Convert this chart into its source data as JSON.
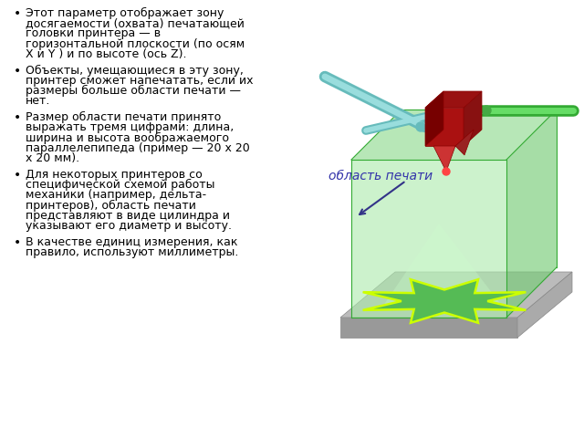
{
  "background_color": "#ffffff",
  "bullet_points": [
    "Этот параметр отображает зону\nдосягаемости (охвата) печатающей\nголовки принтера — в\nгоризонтальной плоскости (по осям\nX и Y ) и по высоте (ось Z).",
    "Объекты, умещающиеся в эту зону,\nпринтер сможет напечатать, если их\nразмеры больше области печати —\nнет.",
    "Размер области печати принято\nвыражать тремя цифрами: длина,\nширина и высота воображаемого\nпараллелепипеда (пример — 20 х 20\nх 20 мм).",
    "Для некоторых принтеров со\nспецифической схемой работы\nмеханики (например, дельта-\nпринтеров), область печати\nпредставляют в виде цилиндра и\nуказывают его диаметр и высоту.",
    "В качестве единиц измерения, как\nправило, используют миллиметры."
  ],
  "label_text": "область печати",
  "label_color": "#3333aa",
  "label_fontsize": 10,
  "bullet_fontsize": 9,
  "text_color": "#000000"
}
